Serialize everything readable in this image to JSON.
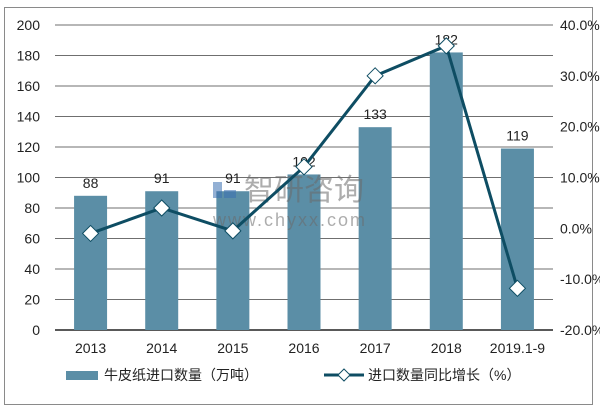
{
  "chart_data": {
    "type": "bar+line",
    "title": "",
    "categories": [
      "2013",
      "2014",
      "2015",
      "2016",
      "2017",
      "2018",
      "2019.1-9"
    ],
    "series": [
      {
        "name": "牛皮纸进口数量（万吨）",
        "type": "bar",
        "axis": "left",
        "color": "#5b8ea6",
        "values": [
          88,
          91,
          91,
          102,
          133,
          182,
          119
        ],
        "data_labels": [
          "88",
          "91",
          "91",
          "102",
          "133",
          "182",
          "119"
        ]
      },
      {
        "name": "进口数量同比增长（%）",
        "type": "line",
        "axis": "right",
        "color": "#0e4d63",
        "marker": "diamond-white",
        "values": [
          -1.0,
          4.0,
          -0.5,
          12.1,
          30.0,
          35.9,
          -11.8
        ]
      }
    ],
    "left_axis": {
      "ylim": [
        0,
        200
      ],
      "ticks": [
        "0",
        "20",
        "40",
        "60",
        "80",
        "100",
        "120",
        "140",
        "160",
        "180",
        "200"
      ]
    },
    "right_axis": {
      "ylim": [
        -20,
        40
      ],
      "ticks": [
        "-20.0%",
        "-10.0%",
        "0.0%",
        "10.0%",
        "20.0%",
        "30.0%",
        "40.0%"
      ]
    },
    "grid": true,
    "legend_position": "bottom"
  },
  "legend": {
    "bar_label": "牛皮纸进口数量（万吨）",
    "line_label": "进口数量同比增长（%）"
  },
  "watermark": {
    "brand": "智研咨询",
    "url": "www.chyxx.com"
  }
}
